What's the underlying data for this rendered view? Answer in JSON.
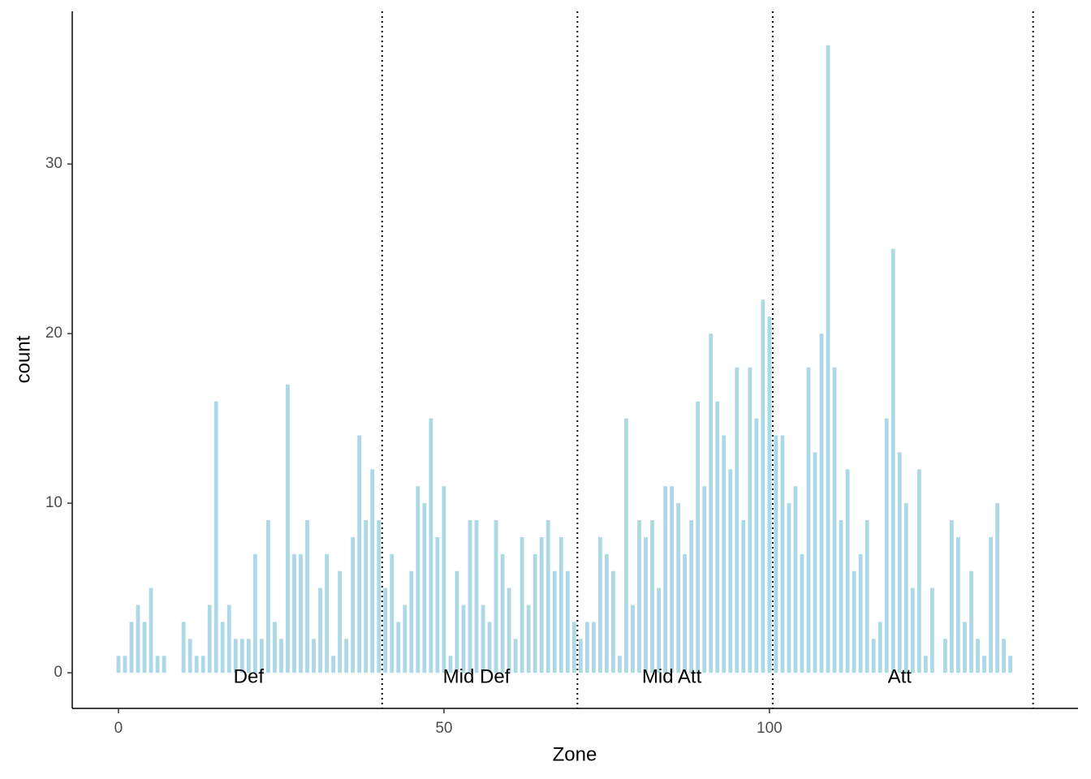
{
  "chart_data": {
    "type": "bar",
    "x_label": "Zone",
    "y_label": "count",
    "x": [
      0,
      1,
      2,
      3,
      4,
      5,
      6,
      7,
      10,
      11,
      12,
      13,
      14,
      15,
      16,
      17,
      18,
      19,
      20,
      21,
      22,
      23,
      24,
      25,
      26,
      27,
      28,
      29,
      30,
      31,
      32,
      33,
      34,
      35,
      36,
      37,
      38,
      39,
      40,
      41,
      42,
      43,
      44,
      45,
      46,
      47,
      48,
      49,
      50,
      51,
      52,
      53,
      54,
      55,
      56,
      57,
      58,
      59,
      60,
      61,
      62,
      63,
      64,
      65,
      66,
      67,
      68,
      69,
      70,
      71,
      72,
      73,
      74,
      75,
      76,
      77,
      78,
      79,
      80,
      81,
      82,
      83,
      84,
      85,
      86,
      87,
      88,
      89,
      90,
      91,
      92,
      93,
      94,
      95,
      96,
      97,
      98,
      99,
      100,
      101,
      102,
      103,
      104,
      105,
      106,
      107,
      108,
      109,
      110,
      111,
      112,
      113,
      114,
      115,
      116,
      117,
      118,
      119,
      120,
      121,
      122,
      123,
      124,
      125,
      127,
      128,
      129,
      130,
      131,
      132,
      133,
      134,
      135,
      136,
      137
    ],
    "values": [
      1,
      1,
      3,
      4,
      3,
      5,
      1,
      1,
      3,
      2,
      1,
      1,
      4,
      16,
      3,
      4,
      2,
      2,
      2,
      7,
      2,
      9,
      3,
      2,
      17,
      7,
      7,
      9,
      2,
      5,
      7,
      1,
      6,
      2,
      8,
      14,
      9,
      12,
      9,
      5,
      7,
      3,
      4,
      6,
      11,
      10,
      15,
      8,
      11,
      1,
      6,
      4,
      9,
      9,
      4,
      3,
      9,
      7,
      5,
      2,
      8,
      4,
      7,
      8,
      9,
      6,
      8,
      6,
      3,
      2,
      3,
      3,
      8,
      7,
      6,
      1,
      15,
      4,
      9,
      8,
      9,
      5,
      11,
      11,
      10,
      7,
      9,
      16,
      11,
      20,
      16,
      14,
      12,
      18,
      9,
      18,
      15,
      22,
      21,
      14,
      14,
      10,
      11,
      7,
      18,
      13,
      20,
      37,
      18,
      9,
      12,
      6,
      7,
      9,
      2,
      3,
      15,
      25,
      13,
      10,
      5,
      12,
      1,
      5,
      2,
      9,
      8,
      3,
      6,
      2,
      1,
      8,
      10,
      2,
      1
    ],
    "color": "#add8e6",
    "vlines": [
      40.5,
      70.5,
      100.5,
      140.5
    ],
    "annotations": [
      {
        "text": "Def",
        "x": 20,
        "y": -0.3
      },
      {
        "text": "Mid Def",
        "x": 55,
        "y": -0.3
      },
      {
        "text": "Mid Att",
        "x": 85,
        "y": -0.3
      },
      {
        "text": "Att",
        "x": 120,
        "y": -0.3
      }
    ],
    "xlim": [
      -7.1,
      147.4
    ],
    "xticks": [
      0,
      50,
      100
    ],
    "ylim": [
      -2.1,
      39
    ],
    "yticks": [
      0,
      10,
      20,
      30
    ],
    "grid": false
  }
}
